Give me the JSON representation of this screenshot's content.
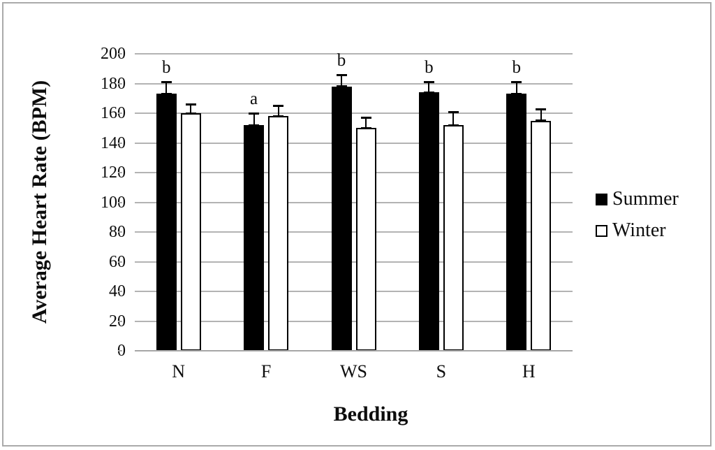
{
  "figure": {
    "background": "#ffffff",
    "frame_border_color": "#aaaaaa"
  },
  "chart_data": {
    "type": "bar",
    "title": "",
    "xlabel": "Bedding",
    "ylabel": "Average Heart Rate (BPM)",
    "categories": [
      "N",
      "F",
      "WS",
      "S",
      "H"
    ],
    "series": [
      {
        "name": "Summer",
        "fill": "#000000",
        "border": "#000000",
        "values": [
          173,
          152,
          178,
          174,
          173
        ],
        "errors": [
          8,
          8,
          8,
          7,
          8
        ]
      },
      {
        "name": "Winter",
        "fill": "#ffffff",
        "border": "#000000",
        "values": [
          160,
          158,
          150,
          152,
          155
        ],
        "errors": [
          6,
          7,
          7,
          9,
          8
        ]
      }
    ],
    "significance_letters": [
      "b",
      "a",
      "b",
      "b",
      "b"
    ],
    "ylim": [
      0,
      200
    ],
    "ytick_step": 20,
    "grid": true,
    "legend_position": "right",
    "colors": {
      "gridline": "#b3b3b3",
      "axis_line": "#a6a6a6",
      "error_bar": "#000000",
      "text": "#0d0d0d"
    }
  }
}
